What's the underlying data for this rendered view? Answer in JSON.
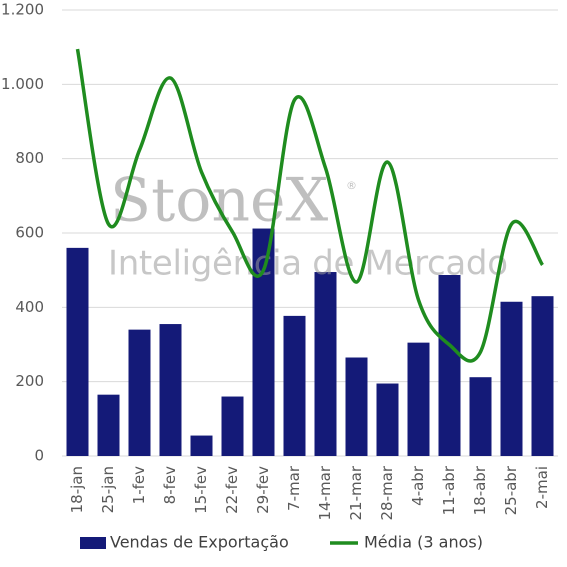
{
  "chart_data": {
    "type": "bar-line",
    "watermark": {
      "brand": "StoneX",
      "mark": "®",
      "subtitle": "Inteligência de Mercado"
    },
    "categories": [
      "18-jan",
      "25-jan",
      "1-fev",
      "8-fev",
      "15-fev",
      "22-fev",
      "29-fev",
      "7-mar",
      "14-mar",
      "21-mar",
      "28-mar",
      "4-abr",
      "11-abr",
      "18-abr",
      "25-abr",
      "2-mai"
    ],
    "series": [
      {
        "name": "Vendas de Exportação",
        "type": "bar",
        "color": "#141a78",
        "values": [
          560,
          165,
          340,
          355,
          55,
          160,
          612,
          377,
          495,
          265,
          195,
          305,
          487,
          212,
          415,
          430
        ]
      },
      {
        "name": "Média (3 anos)",
        "type": "line",
        "color": "#1f8c1f",
        "values": [
          1095,
          624,
          823,
          1017,
          764,
          603,
          500,
          958,
          775,
          468,
          791,
          420,
          299,
          280,
          624,
          514
        ]
      }
    ],
    "ylim": [
      0,
      1200
    ],
    "yticks": [
      0,
      200,
      400,
      600,
      800,
      {
        "value": 1000,
        "label": "1.000"
      },
      {
        "value": 1200,
        "label": "1.200"
      }
    ],
    "grid": true
  }
}
